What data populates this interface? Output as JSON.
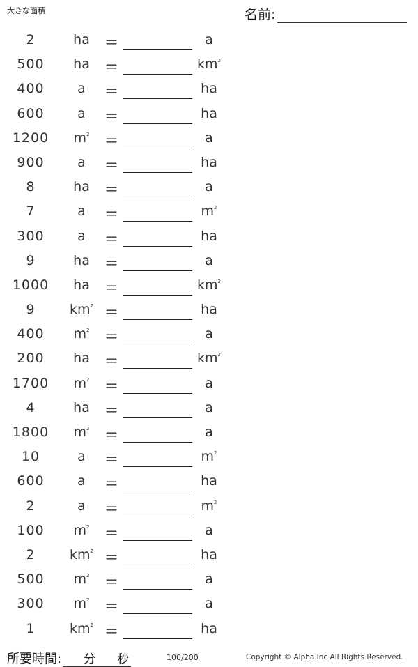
{
  "header": {
    "title": "大きな面積",
    "name_label": "名前:"
  },
  "problems": [
    {
      "value": "2",
      "from_unit": "ha",
      "from_sup": "",
      "equals": "＝",
      "to_unit": "a",
      "to_sup": ""
    },
    {
      "value": "500",
      "from_unit": "ha",
      "from_sup": "",
      "equals": "＝",
      "to_unit": "km",
      "to_sup": "2"
    },
    {
      "value": "400",
      "from_unit": "a",
      "from_sup": "",
      "equals": "＝",
      "to_unit": "ha",
      "to_sup": ""
    },
    {
      "value": "600",
      "from_unit": "a",
      "from_sup": "",
      "equals": "＝",
      "to_unit": "ha",
      "to_sup": ""
    },
    {
      "value": "1200",
      "from_unit": "m",
      "from_sup": "2",
      "equals": "＝",
      "to_unit": "a",
      "to_sup": ""
    },
    {
      "value": "900",
      "from_unit": "a",
      "from_sup": "",
      "equals": "＝",
      "to_unit": "ha",
      "to_sup": ""
    },
    {
      "value": "8",
      "from_unit": "ha",
      "from_sup": "",
      "equals": "＝",
      "to_unit": "a",
      "to_sup": ""
    },
    {
      "value": "7",
      "from_unit": "a",
      "from_sup": "",
      "equals": "＝",
      "to_unit": "m",
      "to_sup": "2"
    },
    {
      "value": "300",
      "from_unit": "a",
      "from_sup": "",
      "equals": "＝",
      "to_unit": "ha",
      "to_sup": ""
    },
    {
      "value": "9",
      "from_unit": "ha",
      "from_sup": "",
      "equals": "＝",
      "to_unit": "a",
      "to_sup": ""
    },
    {
      "value": "1000",
      "from_unit": "ha",
      "from_sup": "",
      "equals": "＝",
      "to_unit": "km",
      "to_sup": "2"
    },
    {
      "value": "9",
      "from_unit": "km",
      "from_sup": "2",
      "equals": "＝",
      "to_unit": "ha",
      "to_sup": ""
    },
    {
      "value": "400",
      "from_unit": "m",
      "from_sup": "2",
      "equals": "＝",
      "to_unit": "a",
      "to_sup": ""
    },
    {
      "value": "200",
      "from_unit": "ha",
      "from_sup": "",
      "equals": "＝",
      "to_unit": "km",
      "to_sup": "2"
    },
    {
      "value": "1700",
      "from_unit": "m",
      "from_sup": "2",
      "equals": "＝",
      "to_unit": "a",
      "to_sup": ""
    },
    {
      "value": "4",
      "from_unit": "ha",
      "from_sup": "",
      "equals": "＝",
      "to_unit": "a",
      "to_sup": ""
    },
    {
      "value": "1800",
      "from_unit": "m",
      "from_sup": "2",
      "equals": "＝",
      "to_unit": "a",
      "to_sup": ""
    },
    {
      "value": "10",
      "from_unit": "a",
      "from_sup": "",
      "equals": "＝",
      "to_unit": "m",
      "to_sup": "2"
    },
    {
      "value": "600",
      "from_unit": "a",
      "from_sup": "",
      "equals": "＝",
      "to_unit": "ha",
      "to_sup": ""
    },
    {
      "value": "2",
      "from_unit": "a",
      "from_sup": "",
      "equals": "＝",
      "to_unit": "m",
      "to_sup": "2"
    },
    {
      "value": "100",
      "from_unit": "m",
      "from_sup": "2",
      "equals": "＝",
      "to_unit": "a",
      "to_sup": ""
    },
    {
      "value": "2",
      "from_unit": "km",
      "from_sup": "2",
      "equals": "＝",
      "to_unit": "ha",
      "to_sup": ""
    },
    {
      "value": "500",
      "from_unit": "m",
      "from_sup": "2",
      "equals": "＝",
      "to_unit": "a",
      "to_sup": ""
    },
    {
      "value": "300",
      "from_unit": "m",
      "from_sup": "2",
      "equals": "＝",
      "to_unit": "a",
      "to_sup": ""
    },
    {
      "value": "1",
      "from_unit": "km",
      "from_sup": "2",
      "equals": "＝",
      "to_unit": "ha",
      "to_sup": ""
    }
  ],
  "footer": {
    "time_label": "所要時間:",
    "minutes_label": "分",
    "seconds_label": "秒",
    "page_number": "100/200",
    "copyright": "Copyright © Alpha.Inc All Rights Reserved."
  }
}
